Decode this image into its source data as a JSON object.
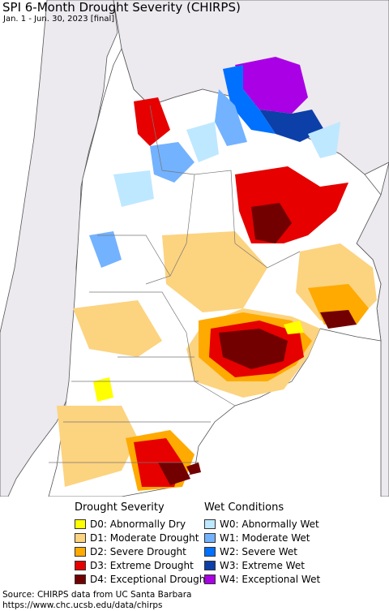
{
  "title": "SPI 6-Month Drought Severity (CHIRPS)",
  "subtitle": "Jan. 1 - Jun. 30, 2023 [final]",
  "legend": {
    "drought_heading": "Drought Severity",
    "wet_heading": "Wet Conditions",
    "drought_items": [
      {
        "label": "D0: Abnormally Dry",
        "color": "#ffff00"
      },
      {
        "label": "D1: Moderate Drought",
        "color": "#fcd37f"
      },
      {
        "label": "D2: Severe Drought",
        "color": "#ffaa00"
      },
      {
        "label": "D3: Extreme Drought",
        "color": "#e60000"
      },
      {
        "label": "D4: Exceptional Drought",
        "color": "#730000"
      }
    ],
    "wet_items": [
      {
        "label": "W0: Abnormally Wet",
        "color": "#bee8ff"
      },
      {
        "label": "W1: Moderate Wet",
        "color": "#73b2ff"
      },
      {
        "label": "W2: Severe Wet",
        "color": "#0070ff"
      },
      {
        "label": "W3: Extreme Wet",
        "color": "#0d3fa8"
      },
      {
        "label": "W4: Exceptional Wet",
        "color": "#aa00e6"
      }
    ]
  },
  "source": {
    "line1": "Source: CHIRPS data from UC Santa Barbara",
    "line2": "https://www.chc.ucsb.edu/data/chirps"
  },
  "colors": {
    "ocean": "#ffffff",
    "outside_region": "#ece9ef",
    "boundary": "#555555"
  }
}
